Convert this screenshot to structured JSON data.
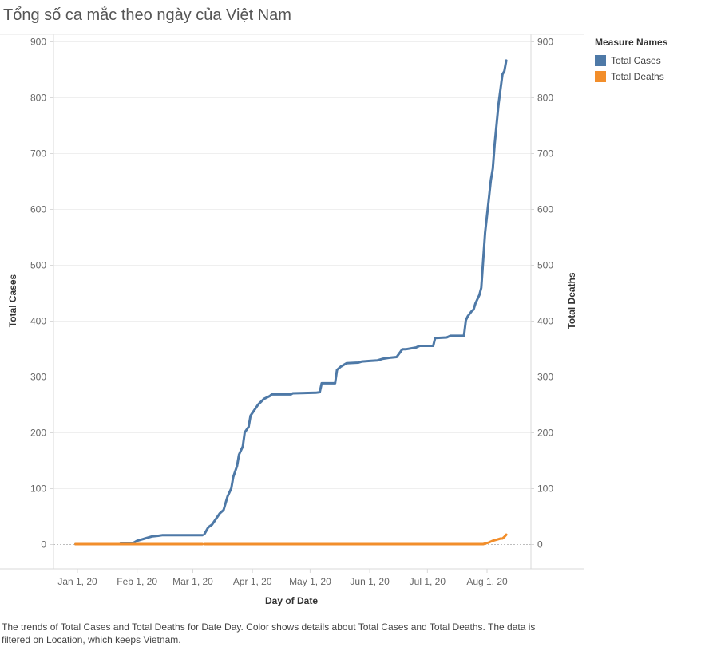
{
  "chart_data": {
    "type": "line",
    "title": "Tổng số ca mắc theo ngày của Việt Nam",
    "xlabel": "Day of Date",
    "ylabel_left": "Total Cases",
    "ylabel_right": "Total Deaths",
    "y_ticks": [
      0,
      100,
      200,
      300,
      400,
      500,
      600,
      700,
      800,
      900
    ],
    "ylim": [
      0,
      900
    ],
    "x_ticks": [
      {
        "date": "2020-01-01",
        "label": "Jan 1, 20"
      },
      {
        "date": "2020-02-01",
        "label": "Feb 1, 20"
      },
      {
        "date": "2020-03-01",
        "label": "Mar 1, 20"
      },
      {
        "date": "2020-04-01",
        "label": "Apr 1, 20"
      },
      {
        "date": "2020-05-01",
        "label": "May 1, 20"
      },
      {
        "date": "2020-06-01",
        "label": "Jun 1, 20"
      },
      {
        "date": "2020-07-01",
        "label": "Jul 1, 20"
      },
      {
        "date": "2020-08-01",
        "label": "Aug 1, 20"
      }
    ],
    "grid": true,
    "legend": {
      "title": "Measure Names",
      "position": "right"
    },
    "series": [
      {
        "name": "Total Cases",
        "color": "#4e79a7",
        "points": [
          [
            "2019-12-31",
            0
          ],
          [
            "2020-01-23",
            0
          ],
          [
            "2020-01-24",
            2
          ],
          [
            "2020-01-30",
            2
          ],
          [
            "2020-02-01",
            6
          ],
          [
            "2020-02-03",
            8
          ],
          [
            "2020-02-05",
            10
          ],
          [
            "2020-02-07",
            12
          ],
          [
            "2020-02-09",
            14
          ],
          [
            "2020-02-12",
            15
          ],
          [
            "2020-02-14",
            16
          ],
          [
            "2020-02-28",
            16
          ],
          [
            "2020-03-06",
            16
          ],
          [
            "2020-03-07",
            18
          ],
          [
            "2020-03-09",
            30
          ],
          [
            "2020-03-11",
            35
          ],
          [
            "2020-03-13",
            45
          ],
          [
            "2020-03-15",
            55
          ],
          [
            "2020-03-17",
            61
          ],
          [
            "2020-03-19",
            85
          ],
          [
            "2020-03-21",
            100
          ],
          [
            "2020-03-22",
            120
          ],
          [
            "2020-03-24",
            140
          ],
          [
            "2020-03-25",
            160
          ],
          [
            "2020-03-27",
            175
          ],
          [
            "2020-03-28",
            200
          ],
          [
            "2020-03-30",
            210
          ],
          [
            "2020-03-31",
            230
          ],
          [
            "2020-04-02",
            240
          ],
          [
            "2020-04-04",
            250
          ],
          [
            "2020-04-07",
            260
          ],
          [
            "2020-04-10",
            265
          ],
          [
            "2020-04-11",
            268
          ],
          [
            "2020-04-21",
            268
          ],
          [
            "2020-04-22",
            270
          ],
          [
            "2020-05-04",
            271
          ],
          [
            "2020-05-06",
            272
          ],
          [
            "2020-05-07",
            288
          ],
          [
            "2020-05-14",
            288
          ],
          [
            "2020-05-15",
            312
          ],
          [
            "2020-05-17",
            318
          ],
          [
            "2020-05-20",
            324
          ],
          [
            "2020-05-26",
            325
          ],
          [
            "2020-05-28",
            327
          ],
          [
            "2020-06-01",
            328
          ],
          [
            "2020-06-05",
            329
          ],
          [
            "2020-06-08",
            332
          ],
          [
            "2020-06-12",
            334
          ],
          [
            "2020-06-15",
            335
          ],
          [
            "2020-06-18",
            349
          ],
          [
            "2020-06-20",
            349
          ],
          [
            "2020-06-25",
            352
          ],
          [
            "2020-06-27",
            355
          ],
          [
            "2020-07-04",
            355
          ],
          [
            "2020-07-05",
            369
          ],
          [
            "2020-07-11",
            370
          ],
          [
            "2020-07-13",
            373
          ],
          [
            "2020-07-20",
            373
          ],
          [
            "2020-07-21",
            401
          ],
          [
            "2020-07-22",
            408
          ],
          [
            "2020-07-24",
            417
          ],
          [
            "2020-07-25",
            420
          ],
          [
            "2020-07-26",
            431
          ],
          [
            "2020-07-28",
            446
          ],
          [
            "2020-07-29",
            459
          ],
          [
            "2020-07-30",
            509
          ],
          [
            "2020-07-31",
            558
          ],
          [
            "2020-08-02",
            620
          ],
          [
            "2020-08-03",
            652
          ],
          [
            "2020-08-04",
            672
          ],
          [
            "2020-08-05",
            717
          ],
          [
            "2020-08-07",
            789
          ],
          [
            "2020-08-09",
            841
          ],
          [
            "2020-08-10",
            847
          ],
          [
            "2020-08-11",
            866
          ]
        ]
      },
      {
        "name": "Total Deaths",
        "color": "#f28e2b",
        "points": [
          [
            "2019-12-31",
            0
          ],
          [
            "2020-03-06",
            0
          ],
          [
            "2020-03-07",
            0
          ],
          [
            "2020-07-30",
            0
          ],
          [
            "2020-07-31",
            1
          ],
          [
            "2020-08-02",
            3
          ],
          [
            "2020-08-04",
            6
          ],
          [
            "2020-08-06",
            8
          ],
          [
            "2020-08-08",
            10
          ],
          [
            "2020-08-09",
            10
          ],
          [
            "2020-08-10",
            13
          ],
          [
            "2020-08-11",
            17
          ]
        ],
        "gap": [
          "2020-03-06",
          "2020-03-07"
        ]
      }
    ],
    "caption": "The trends of Total Cases and Total Deaths for Date Day.  Color shows details about Total Cases and Total Deaths. The data is filtered on Location, which keeps Vietnam."
  }
}
